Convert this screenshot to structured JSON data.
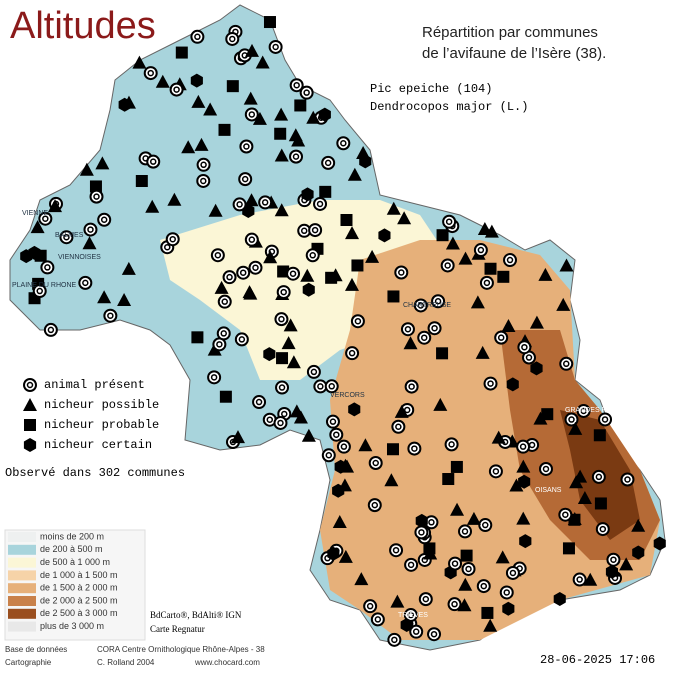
{
  "header": {
    "title": "Altitudes",
    "subtitle_1": "Répartition par communes",
    "subtitle_2": "de l’avifaune de l’Isère (38).",
    "species_common": "Pic epeiche  (104)",
    "species_latin": "Dendrocopos major (L.)"
  },
  "symbol_legend": [
    "animal présent",
    "nicheur possible",
    "nicheur probable",
    "nicheur certain"
  ],
  "observed": "Observé dans 302 communes",
  "altitude_legend": [
    "moins de 200 m",
    "de 200 à 500 m",
    "de 500 à 1 000 m",
    "de 1 000 à 1 500 m",
    "de 1 500 à 2 000 m",
    "de 2 000 à 2 500 m",
    "de 2 500 à 3 000 m",
    "plus de 3 000 m"
  ],
  "places": [
    "VIENNE",
    "BALMES",
    "VIENNOISES",
    "PLAINE DU RHONE",
    "CHARTREUSE",
    "VERCORS",
    "OISANS",
    "TRIEVES",
    "GRANDES ROUSSES"
  ],
  "credits": {
    "sources": "BdCarto®, BdAlti® IGN",
    "map": "Carte Regnatur",
    "db_label": "Base de données",
    "db": "CORA Centre Ornithologique Rhône-Alpes - 38",
    "carto_label": "Cartographie",
    "carto": "C. Rolland 2004",
    "site": "www.chocard.com",
    "date": "28-06-2025 17:06"
  }
}
